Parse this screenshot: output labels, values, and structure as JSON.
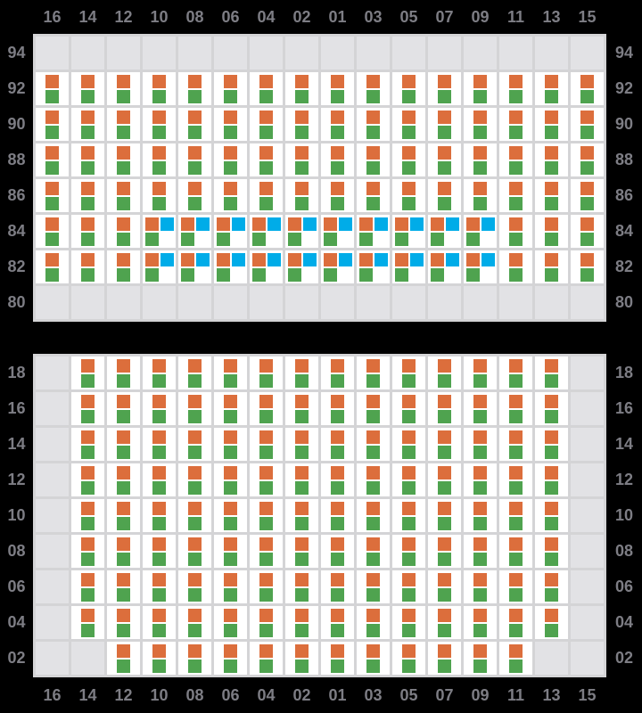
{
  "colors": {
    "background": "#000000",
    "label_text": "#7d7d84",
    "grid_lines": "#d4d4d6",
    "cell_available": "#ffffff",
    "cell_unavailable": "#e2e2e5",
    "marker_orange": "#dc6e3c",
    "marker_green": "#4fa34f",
    "marker_blue": "#00ace8"
  },
  "grid": {
    "columns": [
      "16",
      "14",
      "12",
      "10",
      "08",
      "06",
      "04",
      "02",
      "01",
      "03",
      "05",
      "07",
      "09",
      "11",
      "13",
      "15"
    ],
    "cell_states": {
      "E": "empty",
      "OG": "orange+green",
      "OGB": "orange+blue+green"
    },
    "decks": [
      {
        "name": "top-deck",
        "rows": [
          {
            "label": "94",
            "cells": [
              "E",
              "E",
              "E",
              "E",
              "E",
              "E",
              "E",
              "E",
              "E",
              "E",
              "E",
              "E",
              "E",
              "E",
              "E",
              "E"
            ]
          },
          {
            "label": "92",
            "cells": [
              "OG",
              "OG",
              "OG",
              "OG",
              "OG",
              "OG",
              "OG",
              "OG",
              "OG",
              "OG",
              "OG",
              "OG",
              "OG",
              "OG",
              "OG",
              "OG"
            ]
          },
          {
            "label": "90",
            "cells": [
              "OG",
              "OG",
              "OG",
              "OG",
              "OG",
              "OG",
              "OG",
              "OG",
              "OG",
              "OG",
              "OG",
              "OG",
              "OG",
              "OG",
              "OG",
              "OG"
            ]
          },
          {
            "label": "88",
            "cells": [
              "OG",
              "OG",
              "OG",
              "OG",
              "OG",
              "OG",
              "OG",
              "OG",
              "OG",
              "OG",
              "OG",
              "OG",
              "OG",
              "OG",
              "OG",
              "OG"
            ]
          },
          {
            "label": "86",
            "cells": [
              "OG",
              "OG",
              "OG",
              "OG",
              "OG",
              "OG",
              "OG",
              "OG",
              "OG",
              "OG",
              "OG",
              "OG",
              "OG",
              "OG",
              "OG",
              "OG"
            ]
          },
          {
            "label": "84",
            "cells": [
              "OG",
              "OG",
              "OG",
              "OGB",
              "OGB",
              "OGB",
              "OGB",
              "OGB",
              "OGB",
              "OGB",
              "OGB",
              "OGB",
              "OGB",
              "OG",
              "OG",
              "OG"
            ]
          },
          {
            "label": "82",
            "cells": [
              "OG",
              "OG",
              "OG",
              "OGB",
              "OGB",
              "OGB",
              "OGB",
              "OGB",
              "OGB",
              "OGB",
              "OGB",
              "OGB",
              "OGB",
              "OG",
              "OG",
              "OG"
            ]
          },
          {
            "label": "80",
            "cells": [
              "E",
              "E",
              "E",
              "E",
              "E",
              "E",
              "E",
              "E",
              "E",
              "E",
              "E",
              "E",
              "E",
              "E",
              "E",
              "E"
            ]
          }
        ]
      },
      {
        "name": "bottom-deck",
        "rows": [
          {
            "label": "18",
            "cells": [
              "E",
              "OG",
              "OG",
              "OG",
              "OG",
              "OG",
              "OG",
              "OG",
              "OG",
              "OG",
              "OG",
              "OG",
              "OG",
              "OG",
              "OG",
              "E"
            ]
          },
          {
            "label": "16",
            "cells": [
              "E",
              "OG",
              "OG",
              "OG",
              "OG",
              "OG",
              "OG",
              "OG",
              "OG",
              "OG",
              "OG",
              "OG",
              "OG",
              "OG",
              "OG",
              "E"
            ]
          },
          {
            "label": "14",
            "cells": [
              "E",
              "OG",
              "OG",
              "OG",
              "OG",
              "OG",
              "OG",
              "OG",
              "OG",
              "OG",
              "OG",
              "OG",
              "OG",
              "OG",
              "OG",
              "E"
            ]
          },
          {
            "label": "12",
            "cells": [
              "E",
              "OG",
              "OG",
              "OG",
              "OG",
              "OG",
              "OG",
              "OG",
              "OG",
              "OG",
              "OG",
              "OG",
              "OG",
              "OG",
              "OG",
              "E"
            ]
          },
          {
            "label": "10",
            "cells": [
              "E",
              "OG",
              "OG",
              "OG",
              "OG",
              "OG",
              "OG",
              "OG",
              "OG",
              "OG",
              "OG",
              "OG",
              "OG",
              "OG",
              "OG",
              "E"
            ]
          },
          {
            "label": "08",
            "cells": [
              "E",
              "OG",
              "OG",
              "OG",
              "OG",
              "OG",
              "OG",
              "OG",
              "OG",
              "OG",
              "OG",
              "OG",
              "OG",
              "OG",
              "OG",
              "E"
            ]
          },
          {
            "label": "06",
            "cells": [
              "E",
              "OG",
              "OG",
              "OG",
              "OG",
              "OG",
              "OG",
              "OG",
              "OG",
              "OG",
              "OG",
              "OG",
              "OG",
              "OG",
              "OG",
              "E"
            ]
          },
          {
            "label": "04",
            "cells": [
              "E",
              "OG",
              "OG",
              "OG",
              "OG",
              "OG",
              "OG",
              "OG",
              "OG",
              "OG",
              "OG",
              "OG",
              "OG",
              "OG",
              "OG",
              "E"
            ]
          },
          {
            "label": "02",
            "cells": [
              "E",
              "E",
              "OG",
              "OG",
              "OG",
              "OG",
              "OG",
              "OG",
              "OG",
              "OG",
              "OG",
              "OG",
              "OG",
              "OG",
              "E",
              "E"
            ]
          }
        ]
      }
    ]
  }
}
